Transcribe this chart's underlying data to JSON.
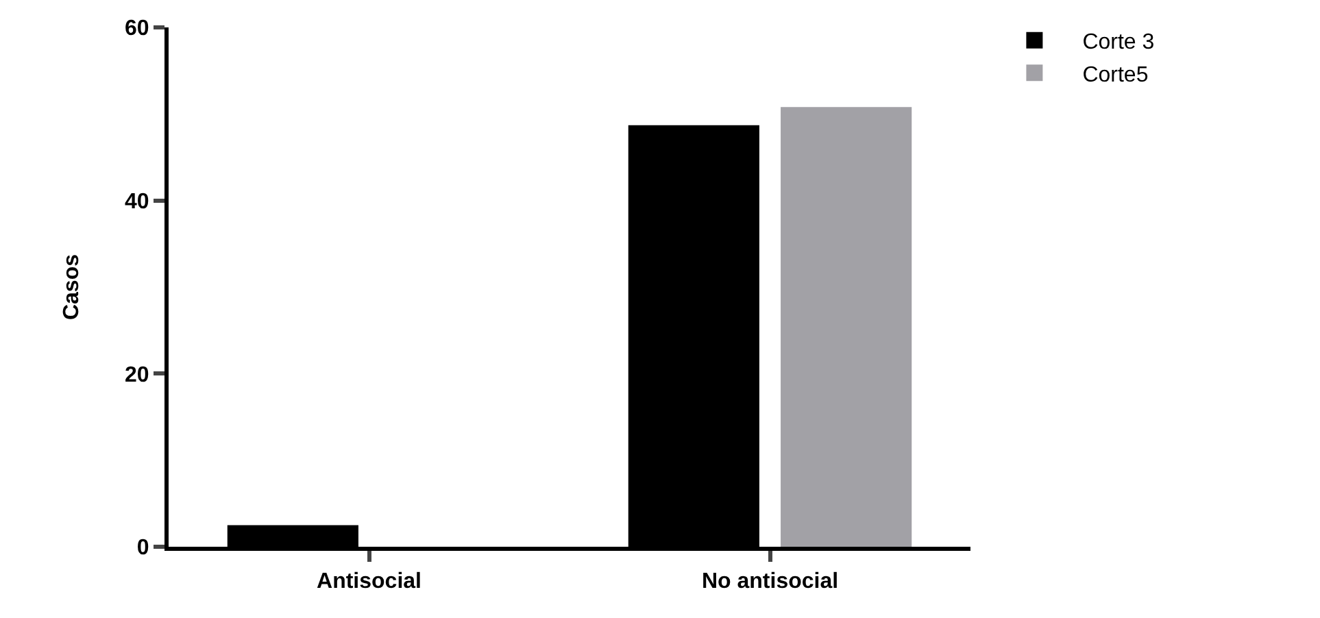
{
  "chart_data": {
    "type": "bar",
    "ylabel": "Casos",
    "categories": [
      "Antisocial",
      "No antisocial"
    ],
    "series": [
      {
        "name": "Corte 3",
        "color": "#000000",
        "values": [
          2.5,
          48.7
        ]
      },
      {
        "name": "Corte5",
        "color": "#a2a1a6",
        "values": [
          0,
          50.8
        ]
      }
    ],
    "ylim": [
      0,
      60
    ],
    "yticks": [
      0,
      20,
      40,
      60
    ],
    "grid": false,
    "legend": "top right"
  }
}
